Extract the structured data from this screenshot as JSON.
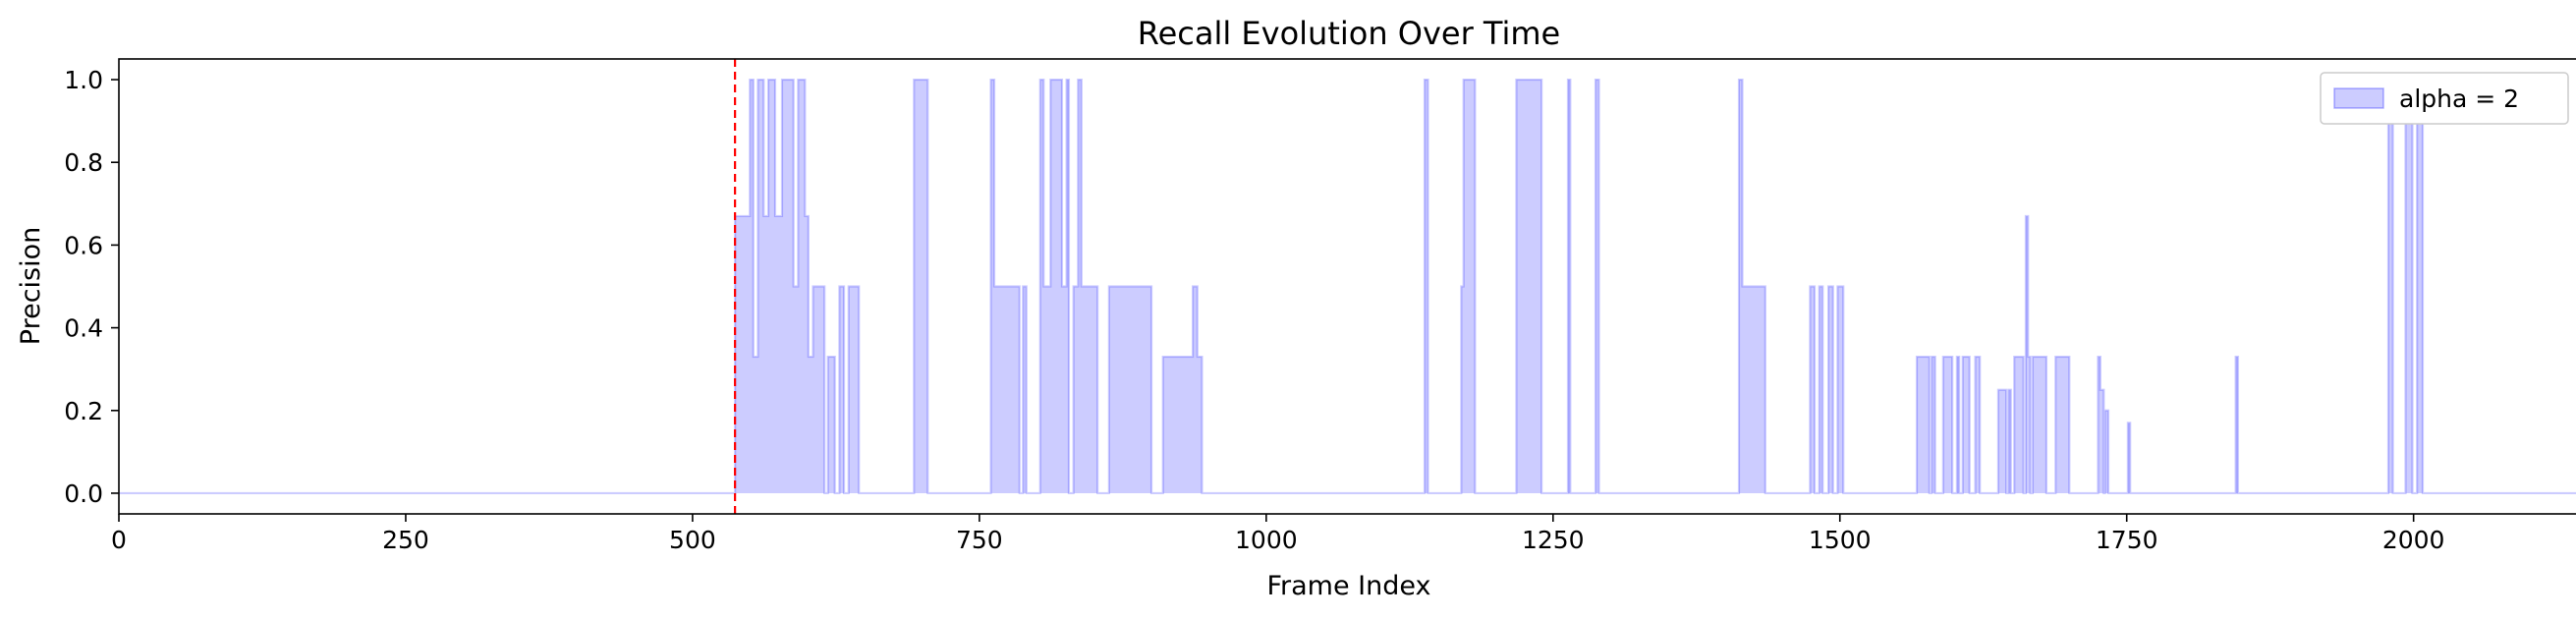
{
  "chart_data": {
    "type": "area",
    "title": "Recall Evolution Over Time",
    "xlabel": "Frame Index",
    "ylabel": "Precision",
    "xlim": [
      0,
      2145
    ],
    "ylim": [
      -0.05,
      1.05
    ],
    "xticks": [
      0,
      250,
      500,
      750,
      1000,
      1250,
      1500,
      1750,
      2000
    ],
    "yticks": [
      0.0,
      0.2,
      0.4,
      0.6,
      0.8,
      1.0
    ],
    "xtick_labels": [
      "0",
      "250",
      "500",
      "750",
      "1000",
      "1250",
      "1500",
      "1750",
      "2000"
    ],
    "ytick_labels": [
      "0.0",
      "0.2",
      "0.4",
      "0.6",
      "0.8",
      "1.0"
    ],
    "grid": false,
    "legend_position": "top-right",
    "fill_color": "#0000ff",
    "fill_opacity": 0.2,
    "vline": {
      "x": 537,
      "color": "#ff0000",
      "style": "dashed"
    },
    "series": [
      {
        "name": "alpha = 2",
        "points": [
          [
            537,
            0.67
          ],
          [
            550,
            1.0
          ],
          [
            553,
            0.33
          ],
          [
            557,
            1.0
          ],
          [
            562,
            0.67
          ],
          [
            566,
            1.0
          ],
          [
            572,
            0.67
          ],
          [
            578,
            1.0
          ],
          [
            588,
            0.5
          ],
          [
            592,
            1.0
          ],
          [
            598,
            0.67
          ],
          [
            601,
            0.33
          ],
          [
            605,
            0.5
          ],
          [
            615,
            0.0
          ],
          [
            618,
            0.33
          ],
          [
            624,
            0.0
          ],
          [
            628,
            0.5
          ],
          [
            632,
            0.0
          ],
          [
            636,
            0.5
          ],
          [
            645,
            0.0
          ],
          [
            693,
            1.0
          ],
          [
            705,
            0.0
          ],
          [
            760,
            1.0
          ],
          [
            763,
            0.5
          ],
          [
            785,
            0.0
          ],
          [
            788,
            0.5
          ],
          [
            791,
            0.0
          ],
          [
            803,
            1.0
          ],
          [
            806,
            0.5
          ],
          [
            812,
            1.0
          ],
          [
            822,
            0.5
          ],
          [
            826,
            1.0
          ],
          [
            828,
            0.0
          ],
          [
            832,
            0.5
          ],
          [
            836,
            1.0
          ],
          [
            839,
            0.5
          ],
          [
            853,
            0.0
          ],
          [
            863,
            0.5
          ],
          [
            900,
            0.0
          ],
          [
            910,
            0.33
          ],
          [
            936,
            0.5
          ],
          [
            940,
            0.33
          ],
          [
            944,
            0.0
          ],
          [
            1138,
            1.0
          ],
          [
            1141,
            0.0
          ],
          [
            1170,
            0.5
          ],
          [
            1172,
            1.0
          ],
          [
            1182,
            0.0
          ],
          [
            1218,
            1.0
          ],
          [
            1240,
            0.0
          ],
          [
            1263,
            1.0
          ],
          [
            1265,
            0.0
          ],
          [
            1287,
            1.0
          ],
          [
            1290,
            0.0
          ],
          [
            1412,
            1.0
          ],
          [
            1415,
            0.5
          ],
          [
            1435,
            0.0
          ],
          [
            1474,
            0.5
          ],
          [
            1478,
            0.0
          ],
          [
            1482,
            0.5
          ],
          [
            1485,
            0.0
          ],
          [
            1490,
            0.5
          ],
          [
            1494,
            0.0
          ],
          [
            1498,
            0.5
          ],
          [
            1503,
            0.0
          ],
          [
            1567,
            0.33
          ],
          [
            1578,
            0.0
          ],
          [
            1580,
            0.33
          ],
          [
            1583,
            0.0
          ],
          [
            1590,
            0.33
          ],
          [
            1598,
            0.0
          ],
          [
            1602,
            0.33
          ],
          [
            1604,
            0.0
          ],
          [
            1607,
            0.33
          ],
          [
            1613,
            0.0
          ],
          [
            1618,
            0.33
          ],
          [
            1622,
            0.0
          ],
          [
            1638,
            0.25
          ],
          [
            1645,
            0.0
          ],
          [
            1647,
            0.25
          ],
          [
            1649,
            0.0
          ],
          [
            1652,
            0.33
          ],
          [
            1660,
            0.0
          ],
          [
            1662,
            0.67
          ],
          [
            1664,
            0.33
          ],
          [
            1666,
            0.0
          ],
          [
            1668,
            0.33
          ],
          [
            1680,
            0.0
          ],
          [
            1688,
            0.33
          ],
          [
            1700,
            0.0
          ],
          [
            1725,
            0.33
          ],
          [
            1727,
            0.25
          ],
          [
            1730,
            0.0
          ],
          [
            1731,
            0.2
          ],
          [
            1734,
            0.0
          ],
          [
            1751,
            0.17
          ],
          [
            1753,
            0.0
          ],
          [
            1845,
            0.33
          ],
          [
            1847,
            0.0
          ],
          [
            1978,
            1.0
          ],
          [
            1982,
            0.0
          ],
          [
            1993,
            1.0
          ],
          [
            1999,
            0.0
          ],
          [
            2003,
            1.0
          ],
          [
            2008,
            0.0
          ]
        ]
      }
    ]
  }
}
